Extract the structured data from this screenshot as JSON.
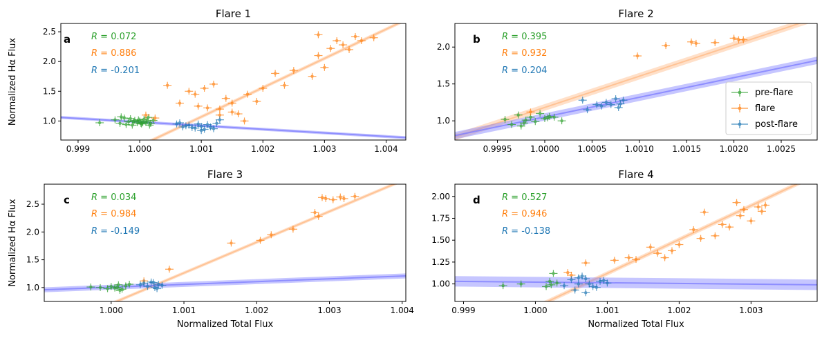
{
  "figure": {
    "xlabel": "Normalized Total Flux",
    "ylabel": "Normalized Hα Flux"
  },
  "legend": {
    "pre_flare": "pre-flare",
    "flare": "flare",
    "post_flare": "post-flare"
  },
  "colors": {
    "pre_flare": "#2ca02c",
    "flare": "#ff7f0e",
    "post_flare": "#1f77b4",
    "fit_flare": "#ffbb88",
    "fit_post": "#8080ff"
  },
  "chart_data": [
    {
      "type": "scatter",
      "title": "Flare 1",
      "panel_label": "a",
      "xlabel": "",
      "ylabel": "Normalized Hα Flux",
      "xlim": [
        0.99872,
        1.00432
      ],
      "ylim": [
        0.68,
        2.64
      ],
      "xticks": [
        "0.999",
        "1.000",
        "1.001",
        "1.002",
        "1.003",
        "1.004"
      ],
      "xtick_values": [
        0.999,
        1.0,
        1.001,
        1.002,
        1.003,
        1.004
      ],
      "yticks": [
        "1.0",
        "1.5",
        "2.0",
        "2.5"
      ],
      "ytick_values": [
        1.0,
        1.5,
        2.0,
        2.5
      ],
      "r_values": {
        "pre_flare": "R = 0.072",
        "flare": "R = 0.886",
        "post_flare": "R = -0.201"
      },
      "series": [
        {
          "name": "pre-flare",
          "x": [
            0.99935,
            0.9996,
            0.99968,
            0.99975,
            0.99982,
            0.99988,
            0.99992,
            0.99996,
            1.0,
            1.00003,
            1.00007,
            1.0001,
            1.00014,
            1.00018,
            1.00022,
            0.99978,
            0.99985,
            0.9999,
            1.00005,
            1.00012,
            0.9997,
            1.00016,
            0.99998,
            1.00002
          ],
          "y": [
            0.97,
            1.02,
            0.96,
            1.05,
            0.99,
            0.93,
            1.01,
            0.97,
            1.0,
            0.95,
            1.03,
            0.98,
            1.06,
            0.96,
            1.01,
            0.94,
            1.04,
            0.99,
            0.97,
            1.0,
            1.07,
            0.93,
            1.02,
            0.96
          ]
        },
        {
          "name": "flare",
          "x": [
            1.0001,
            1.00025,
            1.00045,
            1.00065,
            1.0008,
            1.0009,
            1.00095,
            1.00105,
            1.0012,
            1.0013,
            1.0014,
            1.0015,
            1.0016,
            1.00175,
            1.0019,
            1.002,
            1.0022,
            1.00235,
            1.0025,
            1.0028,
            1.0029,
            1.003,
            1.0031,
            1.0032,
            1.0033,
            1.0034,
            1.0035,
            1.0036,
            1.0038,
            1.0029,
            1.0011,
            1.0013,
            1.0015,
            1.0017
          ],
          "y": [
            1.1,
            1.05,
            1.6,
            1.3,
            1.5,
            1.45,
            1.25,
            1.55,
            1.62,
            1.2,
            1.38,
            1.15,
            1.12,
            1.45,
            1.33,
            1.55,
            1.8,
            1.6,
            1.85,
            1.75,
            2.45,
            1.9,
            2.22,
            2.35,
            2.28,
            2.2,
            2.42,
            2.35,
            2.4,
            2.1,
            1.22,
            1.1,
            1.3,
            1.0
          ]
        },
        {
          "name": "post-flare",
          "x": [
            1.0006,
            1.0007,
            1.0008,
            1.0009,
            1.001,
            1.0011,
            1.0012,
            1.00125,
            1.00075,
            1.00085,
            1.00095,
            1.00105,
            1.00115,
            1.0013,
            1.00065,
            1.001
          ],
          "y": [
            0.95,
            0.9,
            0.93,
            0.88,
            0.91,
            0.94,
            0.87,
            0.96,
            0.92,
            0.89,
            0.95,
            0.86,
            0.9,
            1.02,
            0.97,
            0.84
          ]
        }
      ],
      "fits": [
        {
          "name": "flare",
          "x": [
            0.99872,
            1.00432
          ],
          "y": [
            -0.05,
            2.7
          ],
          "band": 0.03
        },
        {
          "name": "post-flare",
          "x": [
            0.99872,
            1.00432
          ],
          "y": [
            1.06,
            0.72
          ],
          "band": 0.025
        }
      ]
    },
    {
      "type": "scatter",
      "title": "Flare 2",
      "panel_label": "b",
      "xlabel": "",
      "ylabel": "",
      "xlim": [
        0.99905,
        1.00288
      ],
      "ylim": [
        0.74,
        2.32
      ],
      "xticks": [
        "0.9995",
        "1.0000",
        "1.0005",
        "1.0010",
        "1.0015",
        "1.0020",
        "1.0025"
      ],
      "xtick_values": [
        0.9995,
        1.0,
        1.0005,
        1.001,
        1.0015,
        1.002,
        1.0025
      ],
      "yticks": [
        "1.0",
        "1.5",
        "2.0"
      ],
      "ytick_values": [
        1.0,
        1.5,
        2.0
      ],
      "r_values": {
        "pre_flare": "R = 0.395",
        "flare": "R = 0.932",
        "post_flare": "R = 0.204"
      },
      "series": [
        {
          "name": "pre-flare",
          "x": [
            0.99958,
            0.99965,
            0.99972,
            0.99978,
            0.99985,
            0.9999,
            0.99995,
            1.0,
            1.00005,
            1.0001,
            1.00018,
            0.99975,
            0.9998,
            1.00003
          ],
          "y": [
            1.02,
            0.95,
            1.08,
            0.97,
            1.05,
            0.99,
            1.1,
            1.03,
            1.06,
            1.05,
            1.0,
            0.93,
            1.01,
            1.04
          ]
        },
        {
          "name": "flare",
          "x": [
            0.99985,
            1.00098,
            1.00128,
            1.00155,
            1.0016,
            1.0018,
            1.002,
            1.00205,
            1.0021
          ],
          "y": [
            1.12,
            1.88,
            2.02,
            2.07,
            2.05,
            2.06,
            2.12,
            2.1,
            2.1
          ]
        },
        {
          "name": "post-flare",
          "x": [
            1.0004,
            1.00045,
            1.00055,
            1.0006,
            1.00065,
            1.0007,
            1.00075,
            1.0008,
            1.00078,
            1.00083
          ],
          "y": [
            1.28,
            1.15,
            1.22,
            1.2,
            1.25,
            1.22,
            1.3,
            1.23,
            1.18,
            1.28
          ]
        }
      ],
      "fits": [
        {
          "name": "flare",
          "x": [
            0.99905,
            1.00288
          ],
          "y": [
            0.78,
            2.4
          ],
          "band": 0.045
        },
        {
          "name": "post-flare",
          "x": [
            0.99905,
            1.00288
          ],
          "y": [
            0.8,
            1.82
          ],
          "band": 0.05
        }
      ],
      "legend_position": "lower-right"
    },
    {
      "type": "scatter",
      "title": "Flare 3",
      "panel_label": "c",
      "xlabel": "Normalized Total Flux",
      "ylabel": "Normalized Hα Flux",
      "xlim": [
        0.99908,
        1.00405
      ],
      "ylim": [
        0.75,
        2.86
      ],
      "xticks": [
        "1.000",
        "1.001",
        "1.002",
        "1.003",
        "1.004"
      ],
      "xtick_values": [
        1.0,
        1.001,
        1.002,
        1.003,
        1.004
      ],
      "yticks": [
        "1.0",
        "1.5",
        "2.0",
        "2.5"
      ],
      "ytick_values": [
        1.0,
        1.5,
        2.0,
        2.5
      ],
      "r_values": {
        "pre_flare": "R = 0.034",
        "flare": "R = 0.984",
        "post_flare": "R = -0.149"
      },
      "series": [
        {
          "name": "pre-flare",
          "x": [
            0.99972,
            0.99985,
            0.99995,
            1.0,
            1.00005,
            1.0001,
            1.00015,
            1.0002,
            1.00025,
            1.00008,
            1.00012
          ],
          "y": [
            1.01,
            1.0,
            0.98,
            1.02,
            0.99,
            1.05,
            0.97,
            1.03,
            1.06,
            1.0,
            0.95
          ]
        },
        {
          "name": "flare",
          "x": [
            1.00045,
            1.0008,
            1.00165,
            1.00205,
            1.0022,
            1.0025,
            1.0028,
            1.00285,
            1.0029,
            1.00295,
            1.00305,
            1.00315,
            1.0032,
            1.00335
          ],
          "y": [
            1.12,
            1.33,
            1.8,
            1.85,
            1.95,
            2.05,
            2.35,
            2.28,
            2.62,
            2.6,
            2.58,
            2.63,
            2.6,
            2.64
          ]
        },
        {
          "name": "post-flare",
          "x": [
            1.0004,
            1.00045,
            1.0005,
            1.00055,
            1.0006,
            1.00065,
            1.0007,
            1.00063,
            1.00058
          ],
          "y": [
            1.05,
            1.08,
            1.02,
            1.1,
            1.0,
            1.06,
            1.04,
            0.98,
            1.09
          ]
        }
      ],
      "fits": [
        {
          "name": "flare",
          "x": [
            0.99908,
            1.00405
          ],
          "y": [
            0.2,
            2.95
          ],
          "band": 0.03
        },
        {
          "name": "post-flare",
          "x": [
            0.99908,
            1.00405
          ],
          "y": [
            0.96,
            1.21
          ],
          "band": 0.045
        }
      ]
    },
    {
      "type": "scatter",
      "title": "Flare 4",
      "panel_label": "d",
      "xlabel": "Normalized Total Flux",
      "ylabel": "",
      "xlim": [
        0.99888,
        1.00392
      ],
      "ylim": [
        0.8,
        2.14
      ],
      "xticks": [
        "0.999",
        "1.000",
        "1.001",
        "1.002",
        "1.003"
      ],
      "xtick_values": [
        0.999,
        1.0,
        1.001,
        1.002,
        1.003
      ],
      "yticks": [
        "1.00",
        "1.25",
        "1.50",
        "1.75",
        "2.00"
      ],
      "ytick_values": [
        1.0,
        1.25,
        1.5,
        1.75,
        2.0
      ],
      "r_values": {
        "pre_flare": "R = 0.527",
        "flare": "R = 0.946",
        "post_flare": "R = -0.138"
      },
      "series": [
        {
          "name": "pre-flare",
          "x": [
            0.99955,
            0.9998,
            1.00015,
            1.0002,
            1.00025,
            1.0003,
            1.00022
          ],
          "y": [
            0.98,
            1.0,
            0.97,
            1.03,
            1.12,
            1.01,
            0.99
          ]
        },
        {
          "name": "flare",
          "x": [
            1.00045,
            1.0005,
            1.0007,
            1.0011,
            1.0013,
            1.0014,
            1.0016,
            1.0017,
            1.0018,
            1.0019,
            1.002,
            1.0022,
            1.00235,
            1.0025,
            1.0027,
            1.0028,
            1.0029,
            1.003,
            1.0031,
            1.0032,
            1.0023,
            1.0026,
            1.00285,
            1.00315
          ],
          "y": [
            1.13,
            1.1,
            1.24,
            1.27,
            1.3,
            1.28,
            1.42,
            1.35,
            1.3,
            1.38,
            1.45,
            1.62,
            1.82,
            1.55,
            1.65,
            1.93,
            1.85,
            1.72,
            1.88,
            1.9,
            1.52,
            1.68,
            1.78,
            1.83
          ]
        },
        {
          "name": "post-flare",
          "x": [
            1.0004,
            1.0005,
            1.0006,
            1.0007,
            1.0008,
            1.0009,
            1.001,
            1.00055,
            1.00065,
            1.00075,
            1.00085,
            1.00095,
            1.0007,
            1.0006
          ],
          "y": [
            0.98,
            1.05,
            1.0,
            1.06,
            0.97,
            1.03,
            1.01,
            0.93,
            1.09,
            1.0,
            0.96,
            1.04,
            0.9,
            1.07
          ]
        }
      ],
      "fits": [
        {
          "name": "flare",
          "x": [
            0.99888,
            1.00392
          ],
          "y": [
            0.3,
            2.25
          ],
          "band": 0.025
        },
        {
          "name": "post-flare",
          "x": [
            0.99888,
            1.00392
          ],
          "y": [
            1.03,
            0.99
          ],
          "band": 0.06
        }
      ]
    }
  ]
}
